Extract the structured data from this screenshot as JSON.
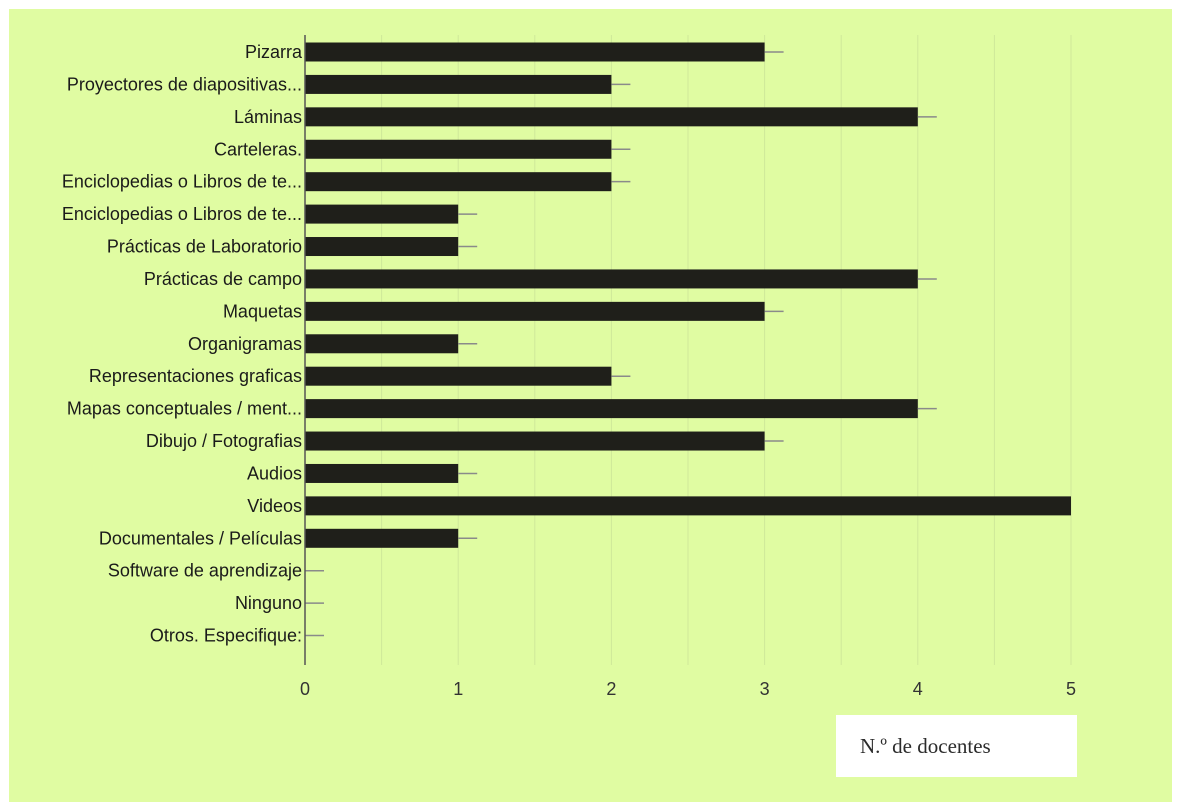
{
  "chart_data": {
    "type": "bar",
    "orientation": "horizontal",
    "categories": [
      "Pizarra",
      "Proyectores de diapositivas...",
      "Láminas",
      "Carteleras.",
      "Enciclopedias o Libros de te...",
      "Enciclopedias o Libros de te...",
      "Prácticas de Laboratorio",
      "Prácticas de campo",
      "Maquetas",
      "Organigramas",
      "Representaciones graficas",
      "Mapas conceptuales / ment...",
      "Dibujo / Fotografias",
      "Audios",
      "Videos",
      "Documentales / Películas",
      "Software de aprendizaje",
      "Ninguno",
      "Otros. Especifique:"
    ],
    "values": [
      3,
      2,
      4,
      2,
      2,
      1,
      1,
      4,
      3,
      1,
      2,
      4,
      3,
      1,
      5,
      1,
      0,
      0,
      0
    ],
    "xlim": [
      0,
      5
    ],
    "xticks": [
      "0",
      "1",
      "2",
      "3",
      "4",
      "5"
    ],
    "xlabel": "N.º de docentes",
    "ylabel": "",
    "title": "",
    "grid": "vertical",
    "error_bars": true,
    "colors": {
      "background": "#e0fca2",
      "bar": "#1f1f1a",
      "axis": "#555555",
      "grid": "#cfe89a",
      "errorbar": "#8a8a8a"
    }
  }
}
